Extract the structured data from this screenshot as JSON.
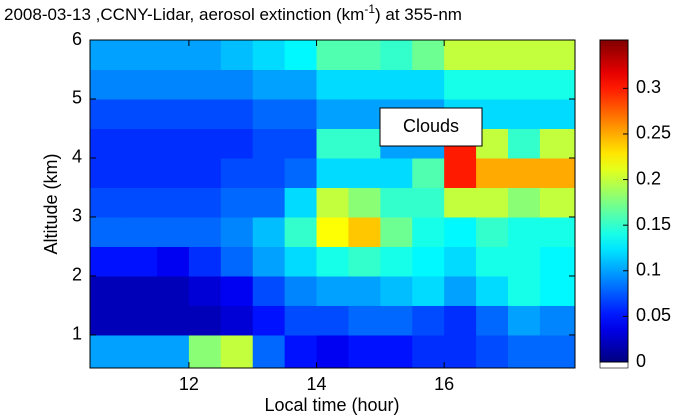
{
  "chart_data": {
    "type": "heatmap",
    "title": [
      "2008-03-13 ,CCNY-Lidar, aerosol extinction (km",
      "-1",
      ") at 355-nm"
    ],
    "x_label": "Local time (hour)",
    "y_label": "Altitude (km)",
    "annotation": "Clouds",
    "x": [
      10.75,
      11.25,
      11.75,
      12.25,
      12.75,
      13.25,
      13.75,
      14.25,
      14.75,
      15.25,
      15.75,
      16.25,
      16.75,
      17.25,
      17.75
    ],
    "y": [
      0.75,
      1.25,
      1.75,
      2.25,
      2.75,
      3.25,
      3.75,
      4.25,
      4.75,
      5.25,
      5.75
    ],
    "z": [
      [
        0.1,
        0.1,
        0.1,
        0.18,
        0.2,
        0.08,
        0.05,
        0.04,
        0.05,
        0.05,
        0.06,
        0.06,
        0.07,
        0.08,
        0.08
      ],
      [
        0.02,
        0.02,
        0.02,
        0.02,
        0.03,
        0.05,
        0.07,
        0.07,
        0.08,
        0.08,
        0.07,
        0.06,
        0.08,
        0.1,
        0.09
      ],
      [
        0.02,
        0.02,
        0.02,
        0.03,
        0.04,
        0.07,
        0.09,
        0.1,
        0.1,
        0.11,
        0.12,
        0.1,
        0.12,
        0.14,
        0.13
      ],
      [
        0.05,
        0.05,
        0.04,
        0.06,
        0.08,
        0.1,
        0.12,
        0.14,
        0.15,
        0.14,
        0.13,
        0.12,
        0.14,
        0.14,
        0.13
      ],
      [
        0.08,
        0.08,
        0.08,
        0.08,
        0.09,
        0.11,
        0.15,
        0.22,
        0.24,
        0.17,
        0.14,
        0.13,
        0.15,
        0.14,
        0.14
      ],
      [
        0.07,
        0.07,
        0.07,
        0.07,
        0.08,
        0.08,
        0.12,
        0.2,
        0.18,
        0.15,
        0.15,
        0.2,
        0.2,
        0.18,
        0.2
      ],
      [
        0.06,
        0.06,
        0.06,
        0.06,
        0.07,
        0.07,
        0.08,
        0.12,
        0.12,
        0.12,
        0.16,
        0.3,
        0.25,
        0.25,
        0.25
      ],
      [
        0.06,
        0.06,
        0.06,
        0.06,
        0.06,
        0.07,
        0.07,
        0.15,
        0.15,
        0.1,
        0.1,
        0.3,
        0.2,
        0.15,
        0.2
      ],
      [
        0.07,
        0.07,
        0.07,
        0.07,
        0.07,
        0.08,
        0.08,
        0.1,
        0.1,
        0.1,
        0.1,
        0.12,
        0.12,
        0.12,
        0.12
      ],
      [
        0.09,
        0.09,
        0.09,
        0.09,
        0.09,
        0.1,
        0.1,
        0.12,
        0.12,
        0.12,
        0.12,
        0.14,
        0.14,
        0.14,
        0.14
      ],
      [
        0.1,
        0.1,
        0.1,
        0.1,
        0.11,
        0.12,
        0.13,
        0.16,
        0.16,
        0.15,
        0.17,
        0.2,
        0.2,
        0.2,
        0.2
      ]
    ],
    "xlim": [
      10.45,
      18.05
    ],
    "ylim": [
      0.44,
      6
    ],
    "xticks": [
      12,
      14,
      16
    ],
    "yticks": [
      1,
      2,
      3,
      4,
      5,
      6
    ],
    "zlim": [
      0,
      0.353
    ],
    "zticks": [
      0,
      0.05,
      0.1,
      0.15,
      0.2,
      0.25,
      0.3
    ],
    "colormap": "jet"
  }
}
